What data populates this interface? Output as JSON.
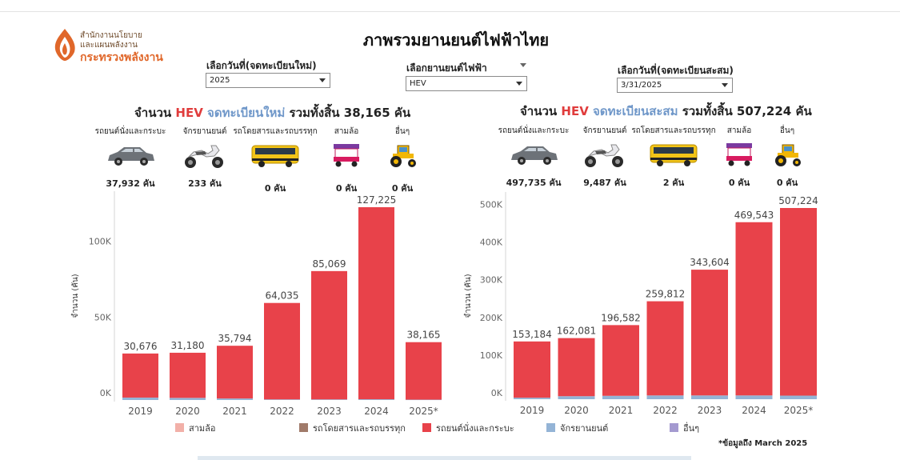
{
  "logo": {
    "line1": "สำนักงานนโยบาย",
    "line2": "และแผนพลังงาน",
    "line3": "กระทรวงพลังงาน"
  },
  "page_title": "ภาพรวมยานยนต์ไฟฟ้าไทย",
  "filters": [
    {
      "label": "เลือกวันที่(จดทะเบียนใหม่)",
      "value": "2025"
    },
    {
      "label": "เลือกยานยนต์ไฟฟ้า",
      "value": "HEV"
    },
    {
      "label": "เลือกวันที่(จดทะเบียนสะสม)",
      "value": "3/31/2025"
    }
  ],
  "panels": [
    {
      "heading": {
        "prefix": "จำนวน",
        "type": "HEV",
        "kind": "จดทะเบียนใหม่",
        "suffix": "รวมทั้งสิ้น 38,165 คัน"
      },
      "vehicles": [
        {
          "name": "รถยนต์นั่งและกระบะ",
          "icon": "car-icon",
          "count": "37,932 คัน"
        },
        {
          "name": "จักรยานยนต์",
          "icon": "motorcycle-icon",
          "count": "233 คัน"
        },
        {
          "name": "รถโดยสารและรถบรรทุก",
          "icon": "bus-icon",
          "count": "0 คัน"
        },
        {
          "name": "สามล้อ",
          "icon": "tuktuk-icon",
          "count": "0 คัน"
        },
        {
          "name": "อื่นๆ",
          "icon": "tractor-icon",
          "count": "0 คัน"
        }
      ]
    },
    {
      "heading": {
        "prefix": "จำนวน",
        "type": "HEV",
        "kind": "จดทะเบียนสะสม",
        "suffix": "รวมทั้งสิ้น 507,224 คัน"
      },
      "vehicles": [
        {
          "name": "รถยนต์นั่งและกระบะ",
          "icon": "car-icon",
          "count": "497,735 คัน"
        },
        {
          "name": "จักรยานยนต์",
          "icon": "motorcycle-icon",
          "count": "9,487 คัน"
        },
        {
          "name": "รถโดยสารและรถบรรทุก",
          "icon": "bus-icon",
          "count": "2 คัน"
        },
        {
          "name": "สามล้อ",
          "icon": "tuktuk-icon",
          "count": "0 คัน"
        },
        {
          "name": "อื่นๆ",
          "icon": "tractor-icon",
          "count": "0 คัน"
        }
      ]
    }
  ],
  "chart_data": [
    {
      "type": "bar",
      "stacked": true,
      "categories": [
        "2019",
        "2020",
        "2021",
        "2022",
        "2023",
        "2024",
        "2025*"
      ],
      "series": [
        {
          "name": "รถยนต์นั่งและกระบะ",
          "color": "#e8424a",
          "values": [
            29076,
            29780,
            34794,
            63635,
            84669,
            126725,
            37932
          ]
        },
        {
          "name": "จักรยานยนต์",
          "color": "#94b4d6",
          "values": [
            1600,
            1400,
            1000,
            400,
            400,
            500,
            233
          ]
        }
      ],
      "totals": [
        "30,676",
        "31,180",
        "35,794",
        "64,035",
        "85,069",
        "127,225",
        "38,165"
      ],
      "ylabel": "จำนวน (คัน)",
      "yticks": [
        "0K",
        "50K",
        "100K"
      ],
      "ylim": [
        0,
        127225
      ],
      "grid": false
    },
    {
      "type": "bar",
      "stacked": true,
      "categories": [
        "2019",
        "2020",
        "2021",
        "2022",
        "2023",
        "2024",
        "2025*"
      ],
      "series": [
        {
          "name": "รถยนต์นั่งและกระบะ",
          "color": "#e8424a",
          "values": [
            149184,
            154081,
            187582,
            249812,
            333604,
            459543,
            497735
          ]
        },
        {
          "name": "จักรยานยนต์",
          "color": "#94b4d6",
          "values": [
            4000,
            8000,
            9000,
            10000,
            10000,
            10000,
            9487
          ]
        }
      ],
      "totals": [
        "153,184",
        "162,081",
        "196,582",
        "259,812",
        "343,604",
        "469,543",
        "507,224"
      ],
      "ylabel": "จำนวน (คัน)",
      "yticks": [
        "0K",
        "100K",
        "200K",
        "300K",
        "400K",
        "500K"
      ],
      "ylim": [
        0,
        507224
      ],
      "grid": false
    }
  ],
  "legend": [
    {
      "label": "สามล้อ",
      "color": "#f2b0a8"
    },
    {
      "label": "รถโดยสารและรถบรรทุก",
      "color": "#a07a6a"
    },
    {
      "label": "รถยนต์นั่งและกระบะ",
      "color": "#e8424a"
    },
    {
      "label": "จักรยานยนต์",
      "color": "#94b4d6"
    },
    {
      "label": "อื่นๆ",
      "color": "#a49ad0"
    }
  ],
  "footnote": "*ข้อมูลถึง March 2025"
}
